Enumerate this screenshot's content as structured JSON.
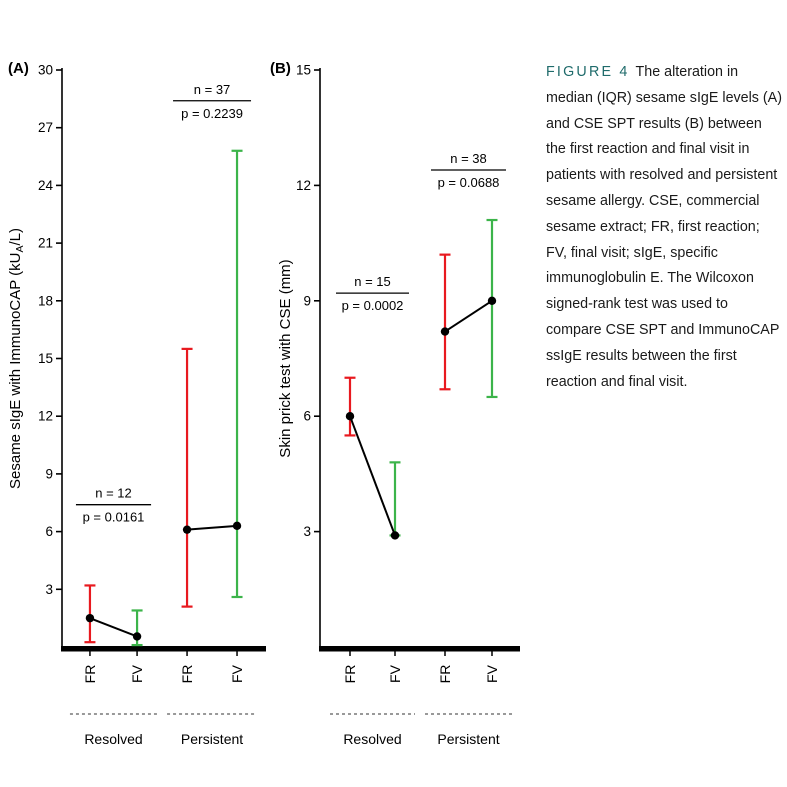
{
  "caption": {
    "label": "FIGURE 4",
    "text": "The alteration in median (IQR) sesame sIgE levels (A) and CSE SPT results (B) between the first reaction and final visit in patients with resolved and persistent sesame allergy. CSE, commercial sesame extract; FR, first reaction; FV, final visit; sIgE, specific immunoglobulin E. The Wilcoxon signed-rank test was used to compare CSE SPT and ImmunoCAP ssIgE results between the first reaction and final visit."
  },
  "colors": {
    "first_reaction": "#e8191f",
    "final_visit": "#3cb44a",
    "caption_label": "#1f6b6b",
    "axis": "#000000"
  },
  "chart_data": [
    {
      "type": "line-errorbar",
      "panel": "A",
      "ylabel": "Sesame sIgE with ImmunoCAP (kUA/L)",
      "ylabel_segments": [
        {
          "t": "Sesame sIgE with ImmunoCAP (kU"
        },
        {
          "t": "A",
          "sub": true
        },
        {
          "t": "/L)"
        }
      ],
      "ylim": [
        0,
        30
      ],
      "yticks": [
        3,
        6,
        9,
        12,
        15,
        18,
        21,
        24,
        27,
        30
      ],
      "x_categories": [
        "FR",
        "FV",
        "FR",
        "FV"
      ],
      "groups": [
        {
          "label": "Resolved",
          "n_label": "n = 12",
          "p_label": "p = 0.0161",
          "annotation_y": 7.4,
          "points": [
            {
              "x_label": "FR",
              "series": "first reaction",
              "median": 1.5,
              "iqr_low": 0.25,
              "iqr_high": 3.2,
              "color": "#e8191f"
            },
            {
              "x_label": "FV",
              "series": "final visit",
              "median": 0.55,
              "iqr_low": 0.1,
              "iqr_high": 1.9,
              "color": "#3cb44a"
            }
          ]
        },
        {
          "label": "Persistent",
          "n_label": "n = 37",
          "p_label": "p = 0.2239",
          "annotation_y": 28.4,
          "points": [
            {
              "x_label": "FR",
              "series": "first reaction",
              "median": 6.1,
              "iqr_low": 2.1,
              "iqr_high": 15.5,
              "color": "#e8191f"
            },
            {
              "x_label": "FV",
              "series": "final visit",
              "median": 6.3,
              "iqr_low": 2.6,
              "iqr_high": 25.8,
              "color": "#3cb44a"
            }
          ]
        }
      ]
    },
    {
      "type": "line-errorbar",
      "panel": "B",
      "ylabel": "Skin prick test with CSE (mm)",
      "ylabel_segments": [
        {
          "t": "Skin prick test with CSE (mm)"
        }
      ],
      "ylim": [
        0,
        15
      ],
      "yticks": [
        3,
        6,
        9,
        12,
        15
      ],
      "x_categories": [
        "FR",
        "FV",
        "FR",
        "FV"
      ],
      "groups": [
        {
          "label": "Resolved",
          "n_label": "n = 15",
          "p_label": "p = 0.0002",
          "annotation_y": 9.2,
          "points": [
            {
              "x_label": "FR",
              "series": "first reaction",
              "median": 6.0,
              "iqr_low": 5.5,
              "iqr_high": 7.0,
              "color": "#e8191f"
            },
            {
              "x_label": "FV",
              "series": "final visit",
              "median": 2.9,
              "iqr_low": 2.9,
              "iqr_high": 4.8,
              "color": "#3cb44a"
            }
          ]
        },
        {
          "label": "Persistent",
          "n_label": "n = 38",
          "p_label": "p = 0.0688",
          "annotation_y": 12.4,
          "points": [
            {
              "x_label": "FR",
              "series": "first reaction",
              "median": 8.2,
              "iqr_low": 6.7,
              "iqr_high": 10.2,
              "color": "#e8191f"
            },
            {
              "x_label": "FV",
              "series": "final visit",
              "median": 9.0,
              "iqr_low": 6.5,
              "iqr_high": 11.1,
              "color": "#3cb44a"
            }
          ]
        }
      ]
    }
  ]
}
